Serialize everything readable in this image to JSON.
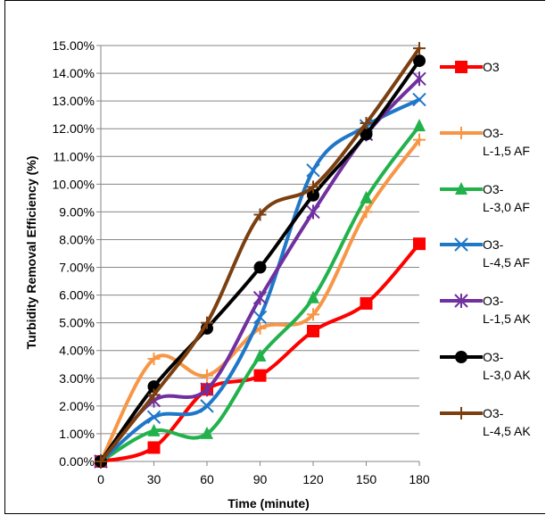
{
  "chart_data": {
    "type": "line",
    "title": "",
    "xlabel": "Time (minute)",
    "ylabel": "Turbidity Removal Efficiency (%)",
    "x": [
      0,
      30,
      60,
      90,
      120,
      150,
      180
    ],
    "x_tick_labels": [
      "0",
      "30",
      "60",
      "90",
      "120",
      "150",
      "180"
    ],
    "ylim": [
      0,
      15
    ],
    "y_tick_labels": [
      "0.00%",
      "1.00%",
      "2.00%",
      "3.00%",
      "4.00%",
      "5.00%",
      "6.00%",
      "7.00%",
      "8.00%",
      "9.00%",
      "10.00%",
      "11.00%",
      "12.00%",
      "13.00%",
      "14.00%",
      "15.00%"
    ],
    "grid": "horizontal",
    "legend_position": "right",
    "series": [
      {
        "name": "O3",
        "legend_lines": [
          "O3"
        ],
        "color": "#ff0000",
        "marker": "square",
        "values": [
          0.0,
          0.5,
          2.6,
          3.1,
          4.7,
          5.7,
          7.85
        ]
      },
      {
        "name": "O3-L-1,5 AF",
        "legend_lines": [
          "O3-",
          "L-1,5 AF"
        ],
        "color": "#f79646",
        "marker": "plus",
        "values": [
          0.0,
          3.7,
          3.1,
          4.8,
          5.3,
          9.0,
          11.6
        ]
      },
      {
        "name": "O3-L-3,0 AF",
        "legend_lines": [
          "O3-",
          "L-3,0 AF"
        ],
        "color": "#22b24c",
        "marker": "triangle",
        "values": [
          0.0,
          1.1,
          1.0,
          3.8,
          5.9,
          9.5,
          12.1
        ]
      },
      {
        "name": "O3-L-4,5 AF",
        "legend_lines": [
          "O3-",
          "L-4,5 AF"
        ],
        "color": "#1f77c8",
        "marker": "x",
        "values": [
          0.0,
          1.6,
          2.0,
          5.2,
          10.5,
          12.1,
          13.05
        ]
      },
      {
        "name": "O3-L-1,5 AK",
        "legend_lines": [
          "O3-",
          "L-1,5 AK"
        ],
        "color": "#7030a0",
        "marker": "asterisk",
        "values": [
          0.0,
          2.2,
          2.6,
          5.9,
          9.0,
          11.8,
          13.8
        ]
      },
      {
        "name": "O3-L-3,0 AK",
        "legend_lines": [
          "O3-",
          "L-3,0 AK"
        ],
        "color": "#000000",
        "marker": "circle",
        "values": [
          0.0,
          2.7,
          4.8,
          7.0,
          9.6,
          11.8,
          14.45
        ]
      },
      {
        "name": "O3-L-4,5 AK",
        "legend_lines": [
          "O3-",
          "L-4,5 AK"
        ],
        "color": "#7b3f10",
        "marker": "plus",
        "values": [
          0.0,
          2.4,
          5.0,
          8.9,
          9.9,
          12.2,
          14.9
        ]
      }
    ]
  }
}
